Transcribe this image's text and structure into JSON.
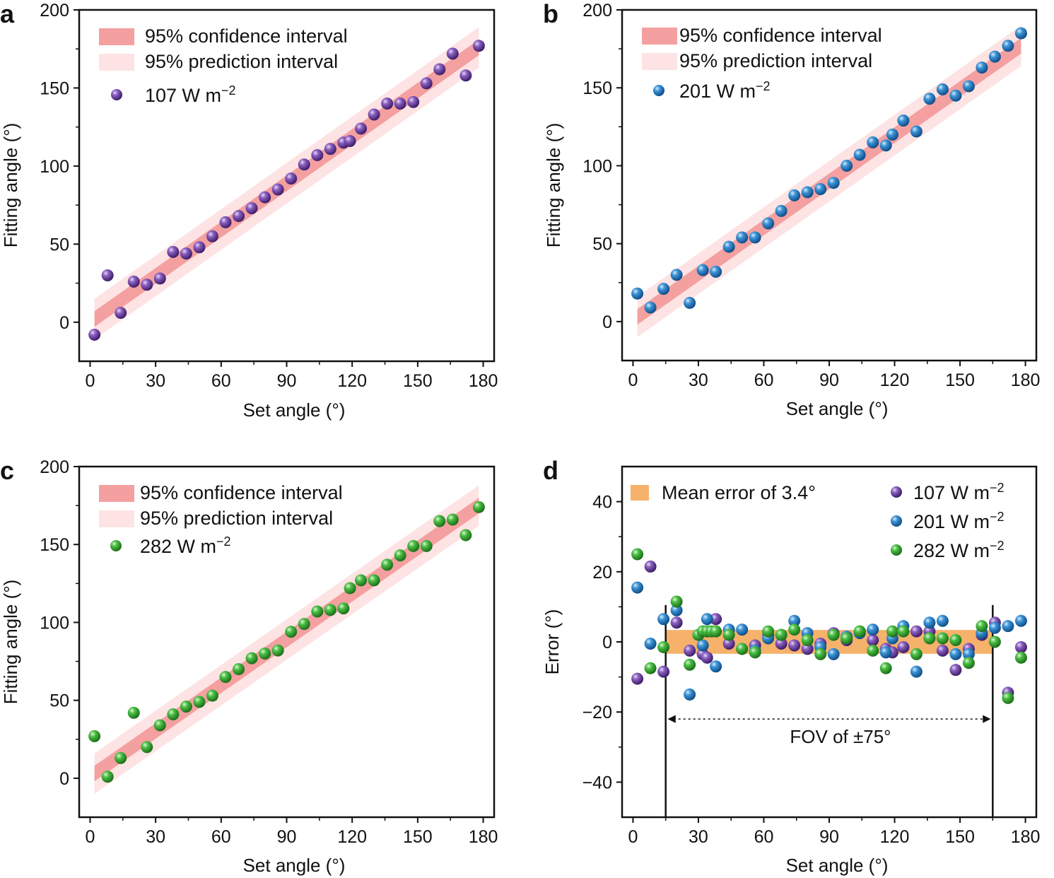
{
  "chart_data": [
    {
      "panel": "a",
      "type": "scatter",
      "xlabel": "Set angle (°)",
      "ylabel": "Fitting angle (°)",
      "xlim": [
        -5,
        185
      ],
      "ylim": [
        -25,
        200
      ],
      "xticks": [
        0,
        30,
        60,
        90,
        120,
        150,
        180
      ],
      "yticks": [
        0,
        50,
        100,
        150,
        200
      ],
      "legend": {
        "confidence": "95% confidence interval",
        "prediction": "95% prediction interval",
        "series": "107 W m",
        "exp": "−2"
      },
      "series_color": "#6a3d9a",
      "bands": {
        "fit_start": [
          2,
          2
        ],
        "fit_end": [
          178,
          176
        ],
        "ci_half_width": 5,
        "pi_half_width": 13
      },
      "x": [
        2,
        8,
        14,
        20,
        26,
        32,
        38,
        44,
        50,
        56,
        62,
        68,
        74,
        80,
        86,
        92,
        98,
        104,
        110,
        116,
        119,
        124,
        130,
        136,
        142,
        148,
        154,
        160,
        166,
        172,
        178
      ],
      "y": [
        -8,
        30,
        6,
        26,
        24,
        28,
        45,
        44,
        48,
        55,
        64,
        68,
        73,
        80,
        85,
        92,
        101,
        107,
        111,
        115,
        116,
        124,
        133,
        140,
        140,
        141,
        153,
        162,
        172,
        158,
        177
      ]
    },
    {
      "panel": "b",
      "type": "scatter",
      "xlabel": "Set angle (°)",
      "ylabel": "Fitting angle (°)",
      "xlim": [
        -5,
        185
      ],
      "ylim": [
        -25,
        200
      ],
      "xticks": [
        0,
        30,
        60,
        90,
        120,
        150,
        180
      ],
      "yticks": [
        0,
        50,
        100,
        150,
        200
      ],
      "legend": {
        "confidence": "95% confidence interval",
        "prediction": "95% prediction interval",
        "series": "201 W m",
        "exp": "−2"
      },
      "series_color": "#2278c0",
      "bands": {
        "fit_start": [
          2,
          3
        ],
        "fit_end": [
          178,
          177
        ],
        "ci_half_width": 5,
        "pi_half_width": 13
      },
      "x": [
        2,
        8,
        14,
        20,
        26,
        32,
        38,
        44,
        50,
        56,
        62,
        68,
        74,
        80,
        86,
        92,
        98,
        104,
        110,
        116,
        119,
        124,
        130,
        136,
        142,
        148,
        154,
        160,
        166,
        172,
        178
      ],
      "y": [
        18,
        9,
        21,
        30,
        12,
        33,
        32,
        48,
        54,
        54,
        63,
        71,
        81,
        83,
        85,
        89,
        100,
        107,
        115,
        113,
        120,
        129,
        122,
        143,
        149,
        145,
        151,
        163,
        170,
        177,
        185
      ]
    },
    {
      "panel": "c",
      "type": "scatter",
      "xlabel": "Set angle (°)",
      "ylabel": "Fitting angle (°)",
      "xlim": [
        -5,
        185
      ],
      "ylim": [
        -25,
        200
      ],
      "xticks": [
        0,
        30,
        60,
        90,
        120,
        150,
        180
      ],
      "yticks": [
        0,
        50,
        100,
        150,
        200
      ],
      "legend": {
        "confidence": "95% confidence interval",
        "prediction": "95% prediction interval",
        "series": "282 W m",
        "exp": "−2"
      },
      "series_color": "#3aaa35",
      "bands": {
        "fit_start": [
          2,
          3
        ],
        "fit_end": [
          178,
          175
        ],
        "ci_half_width": 5,
        "pi_half_width": 13
      },
      "x": [
        2,
        8,
        14,
        20,
        26,
        32,
        38,
        44,
        50,
        56,
        62,
        68,
        74,
        80,
        86,
        92,
        98,
        104,
        110,
        116,
        119,
        124,
        130,
        136,
        142,
        148,
        154,
        160,
        166,
        172,
        178
      ],
      "y": [
        27,
        1,
        13,
        42,
        20,
        34,
        41,
        46,
        49,
        53,
        65,
        70,
        77,
        80,
        82,
        94,
        99,
        107,
        108,
        109,
        122,
        127,
        127,
        137,
        143,
        149,
        149,
        165,
        166,
        156,
        174
      ]
    },
    {
      "panel": "d",
      "type": "scatter",
      "xlabel": "Set angle (°)",
      "ylabel": "Error (°)",
      "xlim": [
        -5,
        185
      ],
      "ylim": [
        -50,
        50
      ],
      "xticks": [
        0,
        30,
        60,
        90,
        120,
        150,
        180
      ],
      "yticks": [
        -40,
        -20,
        0,
        20,
        40
      ],
      "mean_error_label": "Mean error of 3.4°",
      "mean_error": 3.4,
      "mean_band_x": [
        15,
        165
      ],
      "mean_band_color": "#f6b26b",
      "fov_label": "FOV of ±75°",
      "fov_lines_x": [
        15,
        165
      ],
      "fov_arrow_y": -22,
      "series": [
        {
          "name": "107 W m",
          "exp": "−2",
          "color": "#6a3d9a",
          "x": [
            2,
            8,
            14,
            20,
            26,
            32,
            34,
            38,
            44,
            50,
            56,
            62,
            68,
            74,
            80,
            86,
            92,
            98,
            104,
            110,
            116,
            119,
            124,
            130,
            136,
            142,
            148,
            154,
            160,
            166,
            172,
            178
          ],
          "y": [
            -10.5,
            21.5,
            -8.5,
            5.5,
            -2.5,
            -3.5,
            -4.5,
            6.5,
            -0.5,
            -2,
            -1,
            2,
            -0.5,
            -1,
            -2,
            -0.5,
            2.5,
            0.5,
            3,
            0.5,
            -2,
            -3,
            -1.5,
            3,
            3,
            -2.5,
            -8,
            -2,
            2,
            5.5,
            -14.5,
            -1.5
          ]
        },
        {
          "name": "201 W m",
          "exp": "−2",
          "color": "#2278c0",
          "x": [
            2,
            8,
            14,
            20,
            26,
            32,
            34,
            38,
            44,
            50,
            56,
            62,
            68,
            74,
            80,
            86,
            92,
            98,
            104,
            110,
            116,
            119,
            124,
            130,
            136,
            142,
            148,
            154,
            160,
            166,
            172,
            178
          ],
          "y": [
            15.5,
            -0.5,
            6.5,
            9,
            -15,
            -1,
            6.5,
            -7,
            3.5,
            3.5,
            -2.5,
            1,
            2,
            6,
            2.5,
            -1.5,
            -3.5,
            1.5,
            2.5,
            3.5,
            -3,
            1,
            4.5,
            -8.5,
            5.5,
            6,
            -3.5,
            -3.5,
            2.5,
            4,
            4.5,
            6
          ]
        },
        {
          "name": "282 W m",
          "exp": "−2",
          "color": "#3aaa35",
          "x": [
            2,
            8,
            14,
            20,
            26,
            30,
            32,
            34,
            36,
            38,
            44,
            50,
            56,
            62,
            68,
            74,
            80,
            86,
            92,
            98,
            104,
            110,
            116,
            119,
            124,
            130,
            136,
            142,
            148,
            154,
            160,
            166,
            172,
            178
          ],
          "y": [
            25,
            -7.5,
            -1.5,
            11.5,
            -6.5,
            2,
            3,
            3,
            3,
            3,
            2,
            -2,
            -3,
            3,
            2,
            3.5,
            0.5,
            -3.5,
            2,
            1,
            3,
            -2.5,
            -7.5,
            3,
            3,
            -3.5,
            1,
            1,
            0.5,
            -6,
            4.5,
            0,
            -16,
            -4.5
          ]
        }
      ]
    }
  ],
  "panel_labels": {
    "a": "a",
    "b": "b",
    "c": "c",
    "d": "d"
  }
}
